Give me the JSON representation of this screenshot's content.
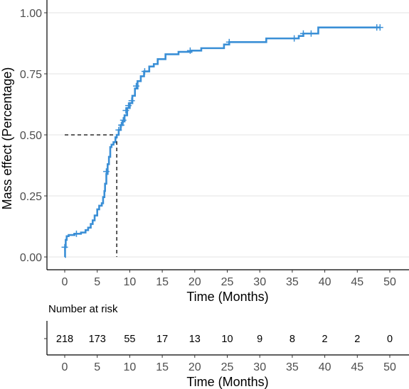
{
  "chart_data": [
    {
      "type": "line",
      "ylabel": "Mass effect (Percentage)",
      "xlabel": "Time (Months)",
      "xlim": [
        0,
        50
      ],
      "ylim": [
        0,
        1
      ],
      "x_ticks": [
        0,
        5,
        10,
        15,
        20,
        25,
        30,
        35,
        40,
        45,
        50
      ],
      "y_ticks": [
        0.0,
        0.25,
        0.5,
        0.75,
        1.0
      ],
      "y_tick_labels": [
        "0.00",
        "0.25",
        "0.50",
        "0.75",
        "1.00"
      ],
      "grid": "horizontal",
      "line_color": "#3a8fd6",
      "series": [
        {
          "values": [
            [
              0.0,
              0.0
            ],
            [
              0.05,
              0.04
            ],
            [
              0.15,
              0.07
            ],
            [
              0.3,
              0.085
            ],
            [
              0.6,
              0.09
            ],
            [
              1.5,
              0.095
            ],
            [
              2.5,
              0.1
            ],
            [
              3.2,
              0.11
            ],
            [
              3.6,
              0.12
            ],
            [
              4.0,
              0.135
            ],
            [
              4.3,
              0.15
            ],
            [
              4.6,
              0.17
            ],
            [
              5.0,
              0.195
            ],
            [
              5.3,
              0.21
            ],
            [
              5.7,
              0.22
            ],
            [
              5.9,
              0.245
            ],
            [
              6.1,
              0.27
            ],
            [
              6.2,
              0.3
            ],
            [
              6.4,
              0.34
            ],
            [
              6.6,
              0.38
            ],
            [
              6.8,
              0.41
            ],
            [
              7.0,
              0.45
            ],
            [
              7.2,
              0.46
            ],
            [
              7.5,
              0.47
            ],
            [
              7.8,
              0.49
            ],
            [
              8.0,
              0.5
            ],
            [
              8.3,
              0.52
            ],
            [
              8.6,
              0.54
            ],
            [
              8.9,
              0.555
            ],
            [
              9.2,
              0.58
            ],
            [
              9.6,
              0.61
            ],
            [
              10.0,
              0.63
            ],
            [
              10.4,
              0.66
            ],
            [
              10.8,
              0.69
            ],
            [
              11.2,
              0.72
            ],
            [
              11.7,
              0.74
            ],
            [
              12.2,
              0.76
            ],
            [
              13.0,
              0.78
            ],
            [
              13.7,
              0.79
            ],
            [
              14.3,
              0.81
            ],
            [
              15.5,
              0.83
            ],
            [
              17.5,
              0.84
            ],
            [
              19.5,
              0.845
            ],
            [
              21.0,
              0.855
            ],
            [
              24.5,
              0.87
            ],
            [
              25.3,
              0.88
            ],
            [
              31.0,
              0.895
            ],
            [
              36.0,
              0.905
            ],
            [
              36.7,
              0.915
            ],
            [
              39.0,
              0.94
            ],
            [
              48.5,
              0.94
            ]
          ],
          "censor_marks": [
            [
              0.0,
              0.04
            ],
            [
              1.8,
              0.095
            ],
            [
              6.4,
              0.35
            ],
            [
              8.3,
              0.52
            ],
            [
              8.7,
              0.54
            ],
            [
              9.0,
              0.56
            ],
            [
              9.4,
              0.6
            ],
            [
              9.8,
              0.62
            ],
            [
              10.3,
              0.64
            ],
            [
              11.0,
              0.7
            ],
            [
              12.3,
              0.76
            ],
            [
              19.3,
              0.845
            ],
            [
              25.3,
              0.88
            ],
            [
              35.3,
              0.895
            ],
            [
              36.7,
              0.915
            ],
            [
              37.9,
              0.915
            ],
            [
              48.0,
              0.94
            ],
            [
              48.5,
              0.94
            ]
          ]
        }
      ],
      "median_reference": {
        "y": 0.5,
        "x": 8.0
      }
    },
    {
      "type": "table",
      "title": "Number at risk",
      "xlabel": "Time (Months)",
      "x": [
        0,
        5,
        10,
        15,
        20,
        25,
        30,
        35,
        40,
        45,
        50
      ],
      "values": [
        218,
        173,
        55,
        17,
        13,
        10,
        9,
        8,
        2,
        2,
        0
      ]
    }
  ]
}
